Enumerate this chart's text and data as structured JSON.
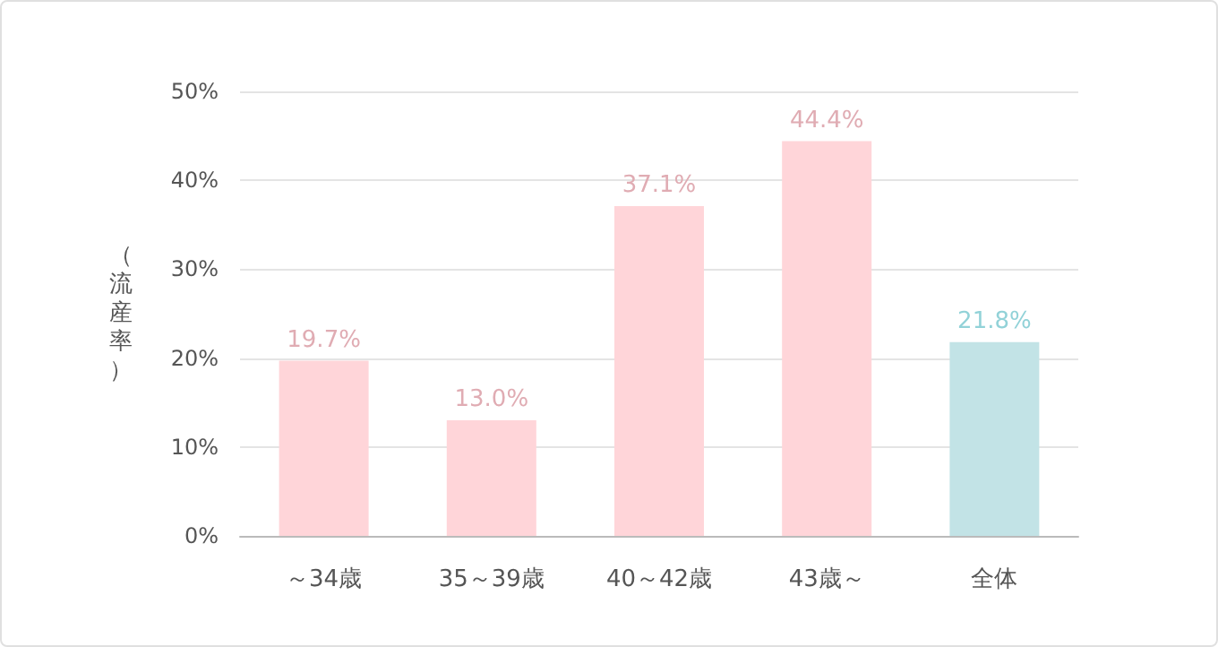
{
  "chart_data": {
    "type": "bar",
    "ylabel": "（流産率）",
    "categories": [
      "～34歳",
      "35～39歳",
      "40～42歳",
      "43歳～",
      "全体"
    ],
    "values": [
      19.7,
      13.0,
      37.1,
      44.4,
      21.8
    ],
    "colors": [
      "#ffd5d9",
      "#ffd5d9",
      "#ffd5d9",
      "#ffd5d9",
      "#c2e3e6"
    ],
    "value_labels": [
      "19.7%",
      "13.0%",
      "37.1%",
      "44.4%",
      "21.8%"
    ],
    "ylim": [
      0,
      50
    ],
    "yticks": [
      {
        "value": 0,
        "label": "0%"
      },
      {
        "value": 10,
        "label": "10%"
      },
      {
        "value": 20,
        "label": "20%"
      },
      {
        "value": 30,
        "label": "30%"
      },
      {
        "value": 40,
        "label": "40%"
      },
      {
        "value": 50,
        "label": "50%"
      }
    ],
    "grid": "y"
  }
}
